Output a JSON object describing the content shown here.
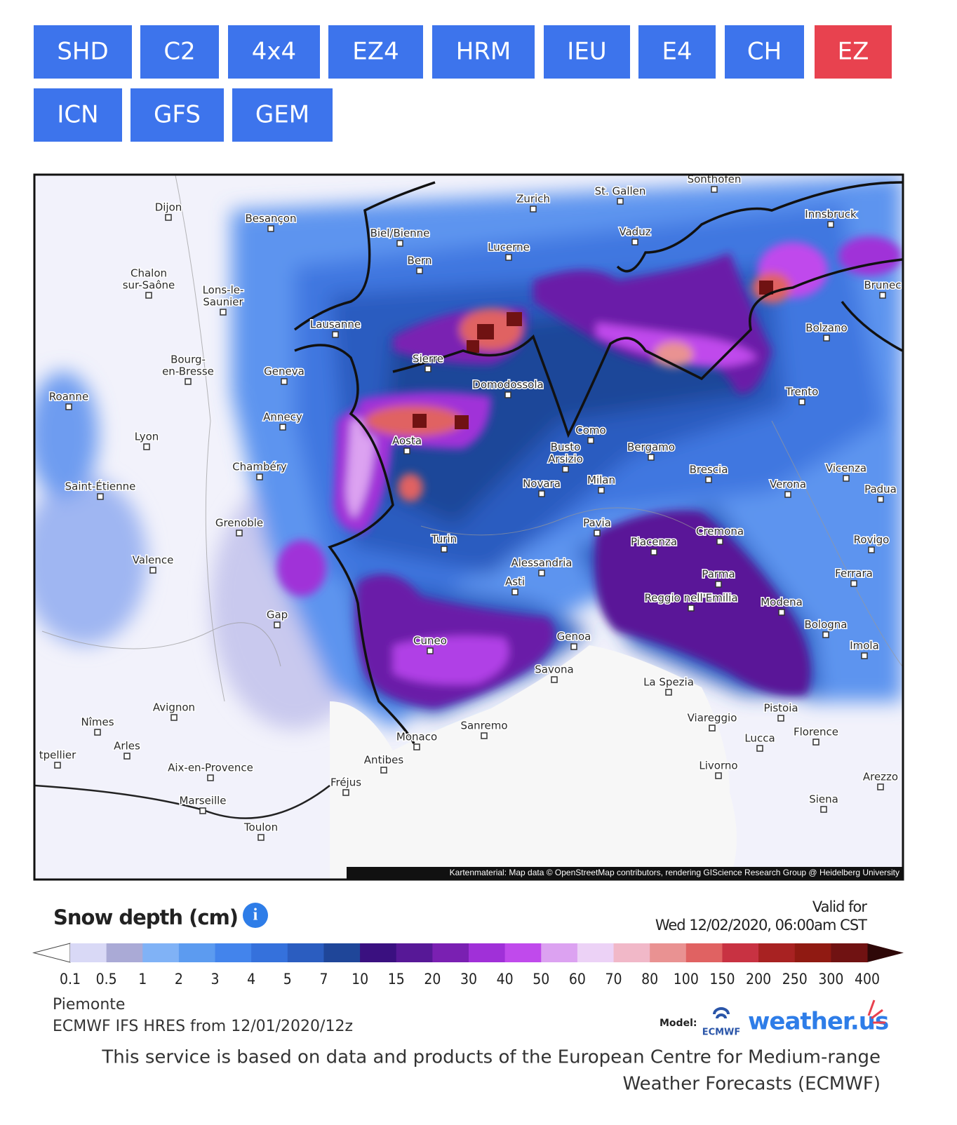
{
  "tabs": [
    {
      "label": "SHD",
      "active": false
    },
    {
      "label": "C2",
      "active": false
    },
    {
      "label": "4x4",
      "active": false
    },
    {
      "label": "EZ4",
      "active": false
    },
    {
      "label": "HRM",
      "active": false
    },
    {
      "label": "IEU",
      "active": false
    },
    {
      "label": "E4",
      "active": false
    },
    {
      "label": "CH",
      "active": false
    },
    {
      "label": "EZ",
      "active": true
    },
    {
      "label": "ICN",
      "active": false
    },
    {
      "label": "GFS",
      "active": false
    },
    {
      "label": "GEM",
      "active": false
    }
  ],
  "map": {
    "cities": [
      [
        "Dijon"
      ],
      [
        "Besançon"
      ],
      [
        "Zurich"
      ],
      [
        "St. Gallen"
      ],
      [
        "Sonthofen"
      ],
      [
        "Innsbruck"
      ],
      [
        "Biel/Bienne"
      ],
      [
        "Vaduz"
      ],
      [
        "Lucerne"
      ],
      [
        "Bern"
      ],
      [
        "Brunec"
      ],
      [
        "Chalon",
        "sur-Saône"
      ],
      [
        "Lons-le-",
        "Saunier"
      ],
      [
        "Lausanne"
      ],
      [
        "Bolzano"
      ],
      [
        "Sierre"
      ],
      [
        "Bourg-",
        "en-Bresse"
      ],
      [
        "Geneva"
      ],
      [
        "Domodossola"
      ],
      [
        "Trento"
      ],
      [
        "Roanne"
      ],
      [
        "Annecy"
      ],
      [
        "Como"
      ],
      [
        "Lyon"
      ],
      [
        "Aosta"
      ],
      [
        "Busto",
        "Arsizio"
      ],
      [
        "Bergamo"
      ],
      [
        "Chambéry"
      ],
      [
        "Brescia"
      ],
      [
        "Vicenza"
      ],
      [
        "Padua"
      ],
      [
        "Saint-Étienne"
      ],
      [
        "Novara"
      ],
      [
        "Milan"
      ],
      [
        "Verona"
      ],
      [
        "Grenoble"
      ],
      [
        "Pavia"
      ],
      [
        "Cremona"
      ],
      [
        "Piacenza"
      ],
      [
        "Rovigo"
      ],
      [
        "Turin"
      ],
      [
        "Valence"
      ],
      [
        "Alessandria"
      ],
      [
        "Asti"
      ],
      [
        "Ferrara"
      ],
      [
        "Parma"
      ],
      [
        "Reggio nell'Emilia"
      ],
      [
        "Modena"
      ],
      [
        "Gap"
      ],
      [
        "Bologna"
      ],
      [
        "Cuneo"
      ],
      [
        "Genoa"
      ],
      [
        "Imola"
      ],
      [
        "Savona"
      ],
      [
        "La Spezia"
      ],
      [
        "Pistoia"
      ],
      [
        "Avignon"
      ],
      [
        "Viareggio"
      ],
      [
        "Nîmes"
      ],
      [
        "Sanremo"
      ],
      [
        "Florence"
      ],
      [
        "Monaco"
      ],
      [
        "Lucca"
      ],
      [
        "Arles"
      ],
      [
        "Antibes"
      ],
      [
        "Livorno"
      ],
      [
        "Aix-en-Provence"
      ],
      [
        "tpellier"
      ],
      [
        "Arezzo"
      ],
      [
        "Fréjus"
      ],
      [
        "Siena"
      ],
      [
        "Marseille"
      ],
      [
        "Toulon"
      ]
    ],
    "attribution": "Kartenmaterial: Map data © OpenStreetMap contributors, rendering GIScience Research Group @ Heidelberg University"
  },
  "legend": {
    "title": "Snow depth (cm)",
    "valid_label": "Valid for",
    "valid_time": "Wed 12/02/2020, 06:00am CST",
    "labels": [
      0.1,
      0.5,
      1,
      2,
      3,
      4,
      5,
      7,
      10,
      15,
      20,
      30,
      40,
      50,
      60,
      70,
      80,
      100,
      150,
      200,
      250,
      300,
      400
    ],
    "colors": [
      "#d9d9f6",
      "#aaaad6",
      "#80b2f6",
      "#5c9bf0",
      "#4384ec",
      "#3571dc",
      "#2b5dc0",
      "#1f4699",
      "#3a1080",
      "#571897",
      "#7a20b2",
      "#a030d8",
      "#c04aec",
      "#dca2f1",
      "#ecd2f6",
      "#f1b8c8",
      "#e99292",
      "#e06262",
      "#c83242",
      "#a82222",
      "#901a12",
      "#701212"
    ],
    "under_color": "#ffffff",
    "over_color": "#2e0808"
  },
  "footer": {
    "region": "Piemonte",
    "run": "ECMWF IFS HRES from 12/01/2020/12z",
    "model_label": "Model:",
    "model_logo": "ECMWF",
    "brand": "weather.us",
    "disclaimer": [
      "This service is based on data and products of the European Centre for Medium-range",
      "Weather Forecasts (ECMWF)"
    ]
  }
}
